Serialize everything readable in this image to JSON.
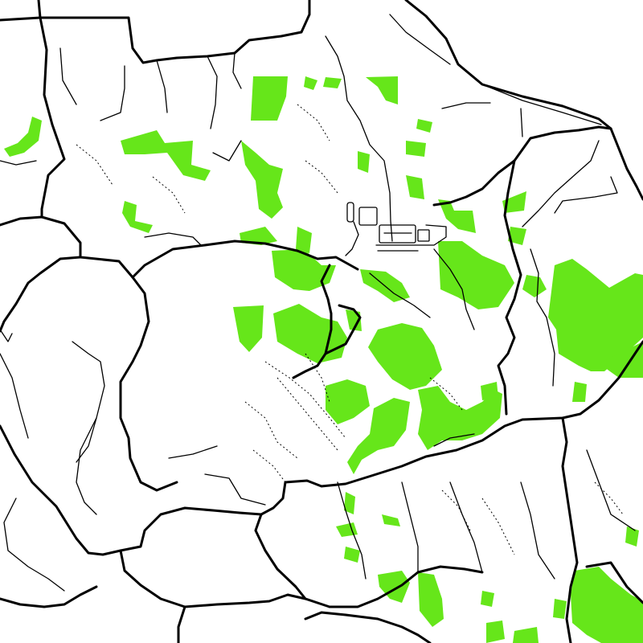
{
  "map": {
    "background": "#ffffff",
    "colors": {
      "vegetation": "#66e61a",
      "road": "#000000"
    },
    "layers": [
      "vegetation-patches",
      "major-roads",
      "minor-roads",
      "trails",
      "facility-outline"
    ],
    "labels": []
  }
}
